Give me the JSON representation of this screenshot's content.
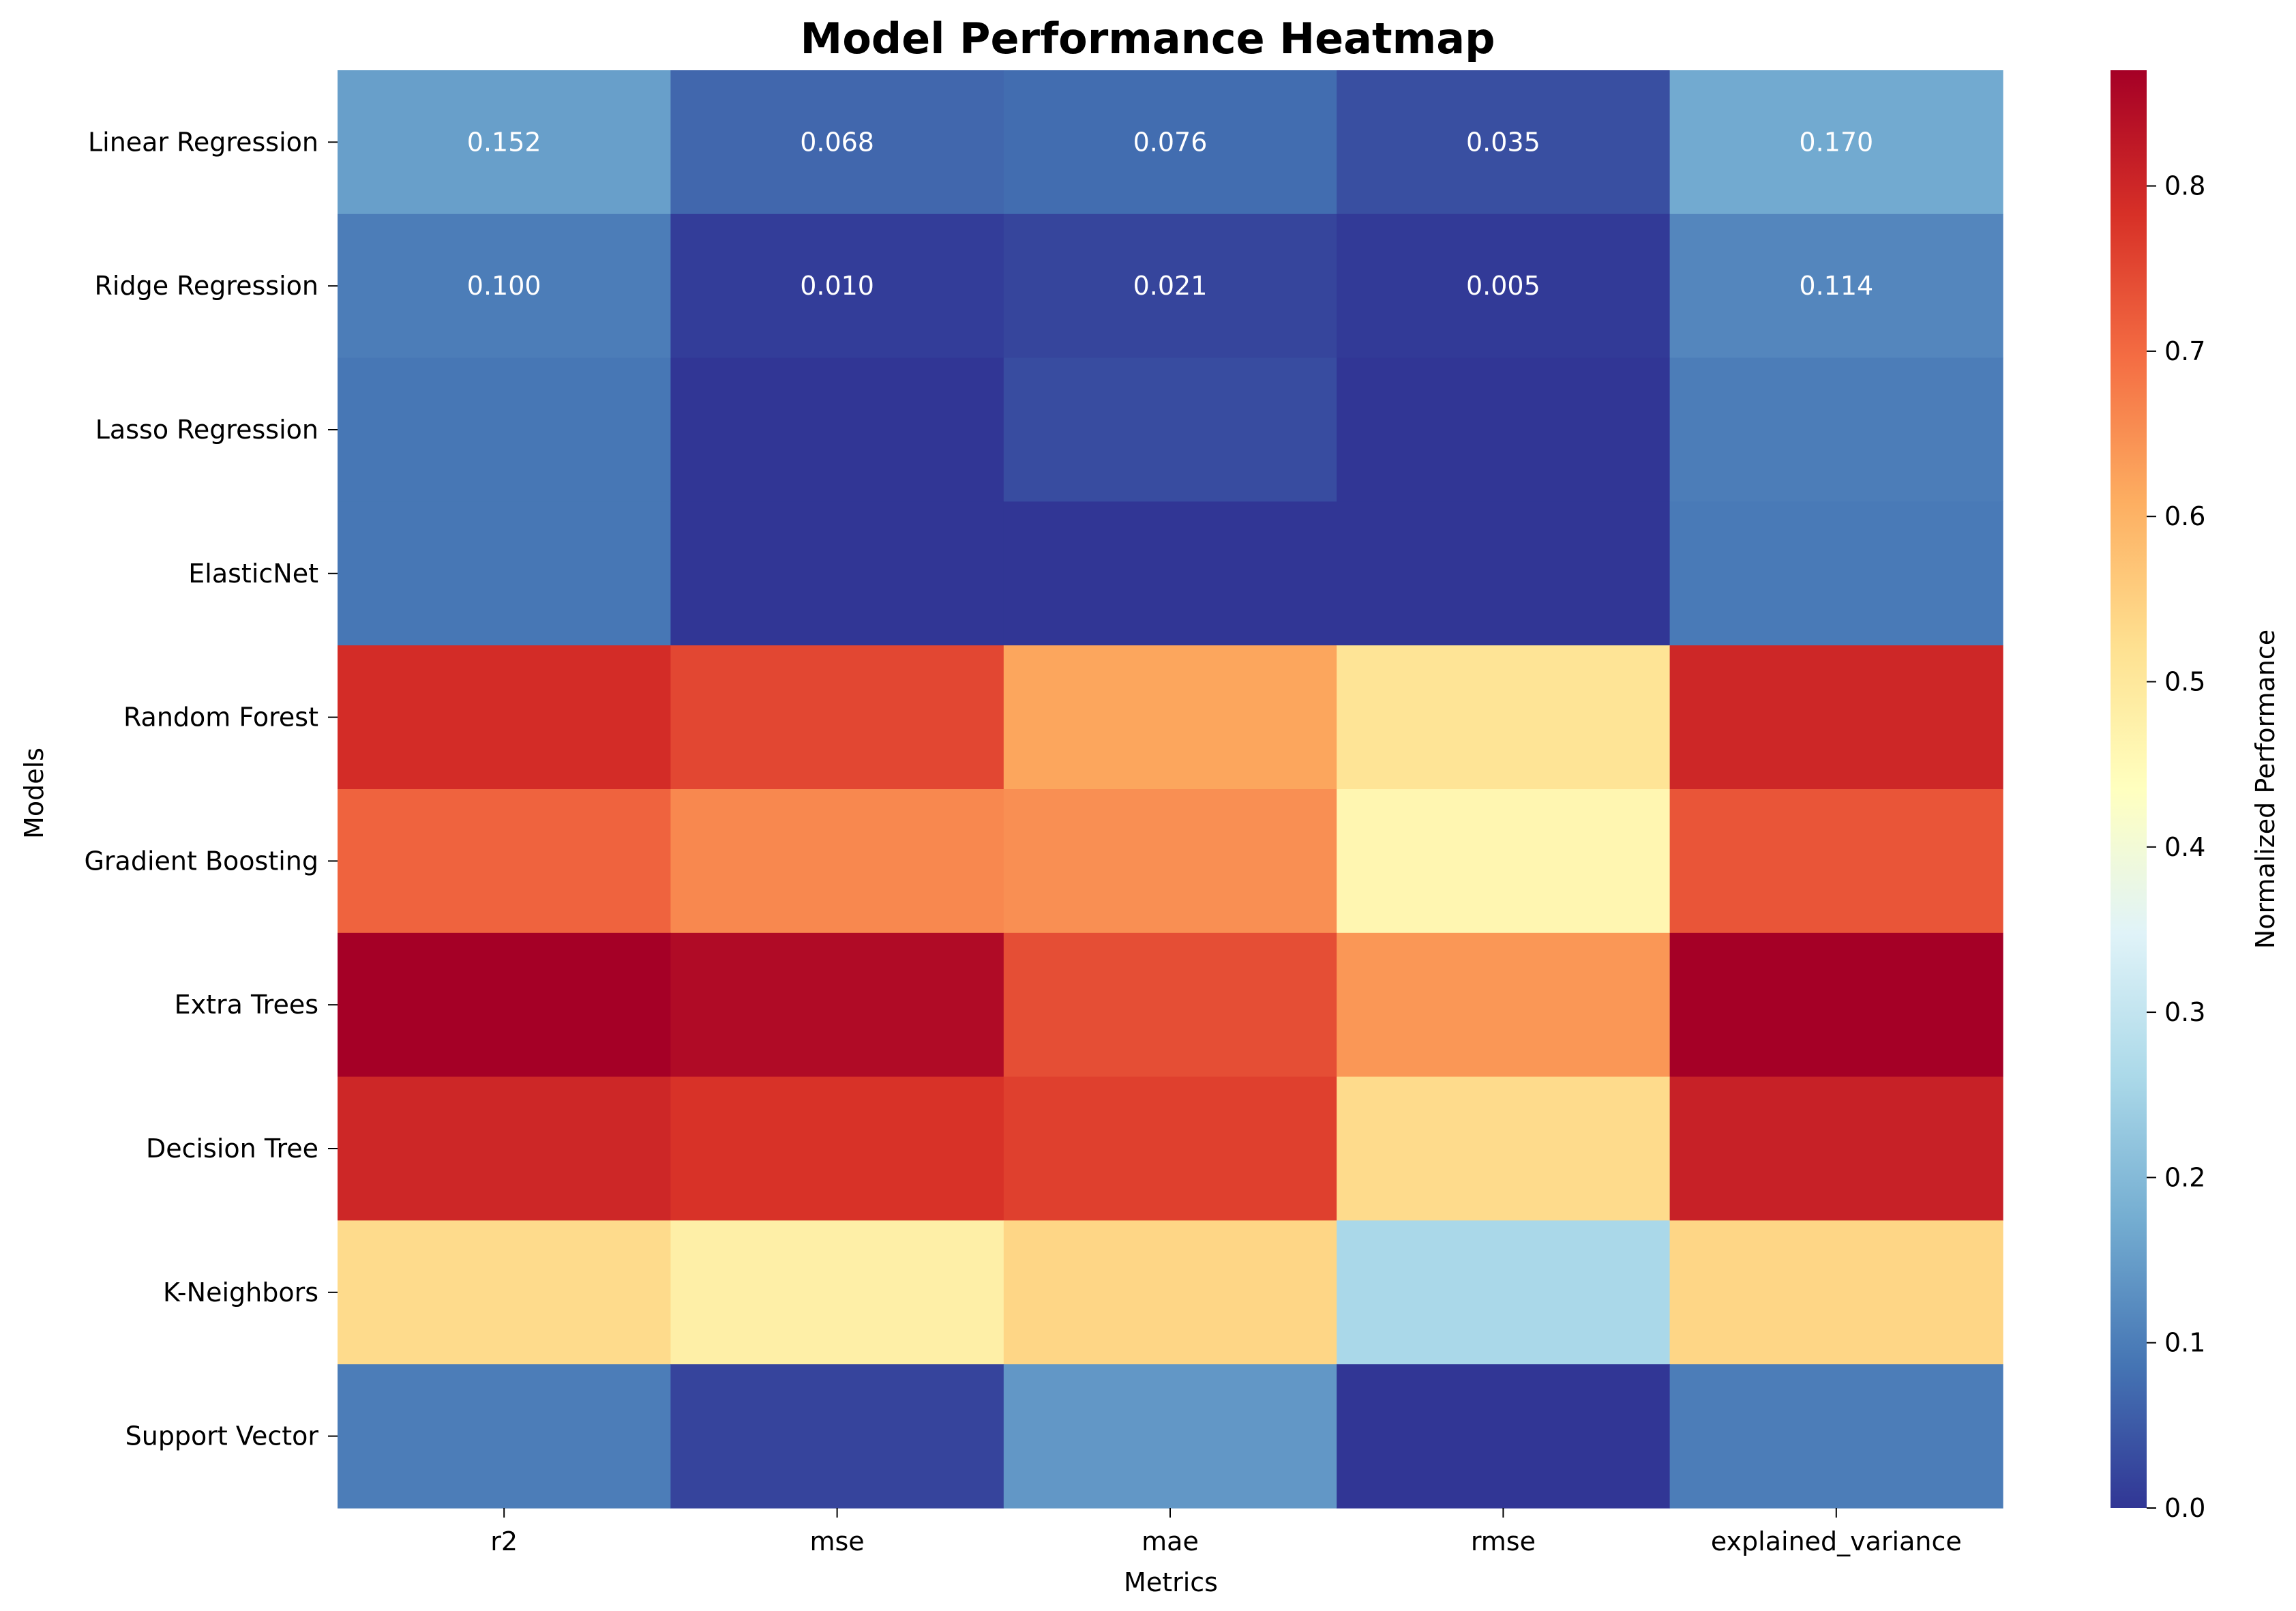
{
  "chart_data": {
    "type": "heatmap",
    "title": "Model Performance Heatmap",
    "xlabel": "Metrics",
    "ylabel": "Models",
    "x_categories": [
      "r2",
      "mse",
      "mae",
      "rmse",
      "explained_variance"
    ],
    "y_categories": [
      "Linear Regression",
      "Ridge Regression",
      "Lasso Regression",
      "ElasticNet",
      "Random Forest",
      "Gradient Boosting",
      "Extra Trees",
      "Decision Tree",
      "K-Neighbors",
      "Support Vector"
    ],
    "values": [
      [
        0.152,
        0.068,
        0.076,
        0.035,
        0.17
      ],
      [
        0.1,
        0.01,
        0.021,
        0.005,
        0.114
      ],
      [
        0.09,
        0.0,
        0.03,
        0.0,
        0.1
      ],
      [
        0.09,
        0.0,
        0.0,
        0.0,
        0.095
      ],
      [
        0.79,
        0.75,
        0.62,
        0.51,
        0.8
      ],
      [
        0.71,
        0.66,
        0.65,
        0.46,
        0.73
      ],
      [
        0.87,
        0.85,
        0.74,
        0.64,
        0.87
      ],
      [
        0.8,
        0.78,
        0.76,
        0.53,
        0.81
      ],
      [
        0.53,
        0.48,
        0.54,
        0.26,
        0.54
      ],
      [
        0.1,
        0.02,
        0.14,
        0.0,
        0.1
      ]
    ],
    "annotated_rows": [
      0,
      1
    ],
    "colormap": "RdYlBu_r",
    "color_range": [
      0,
      0.87
    ],
    "colorbar": {
      "label": "Normalized Performance",
      "ticks": [
        "0.0",
        "0.1",
        "0.2",
        "0.3",
        "0.4",
        "0.5",
        "0.6",
        "0.7",
        "0.8"
      ]
    },
    "grid": false,
    "legend": "none"
  }
}
